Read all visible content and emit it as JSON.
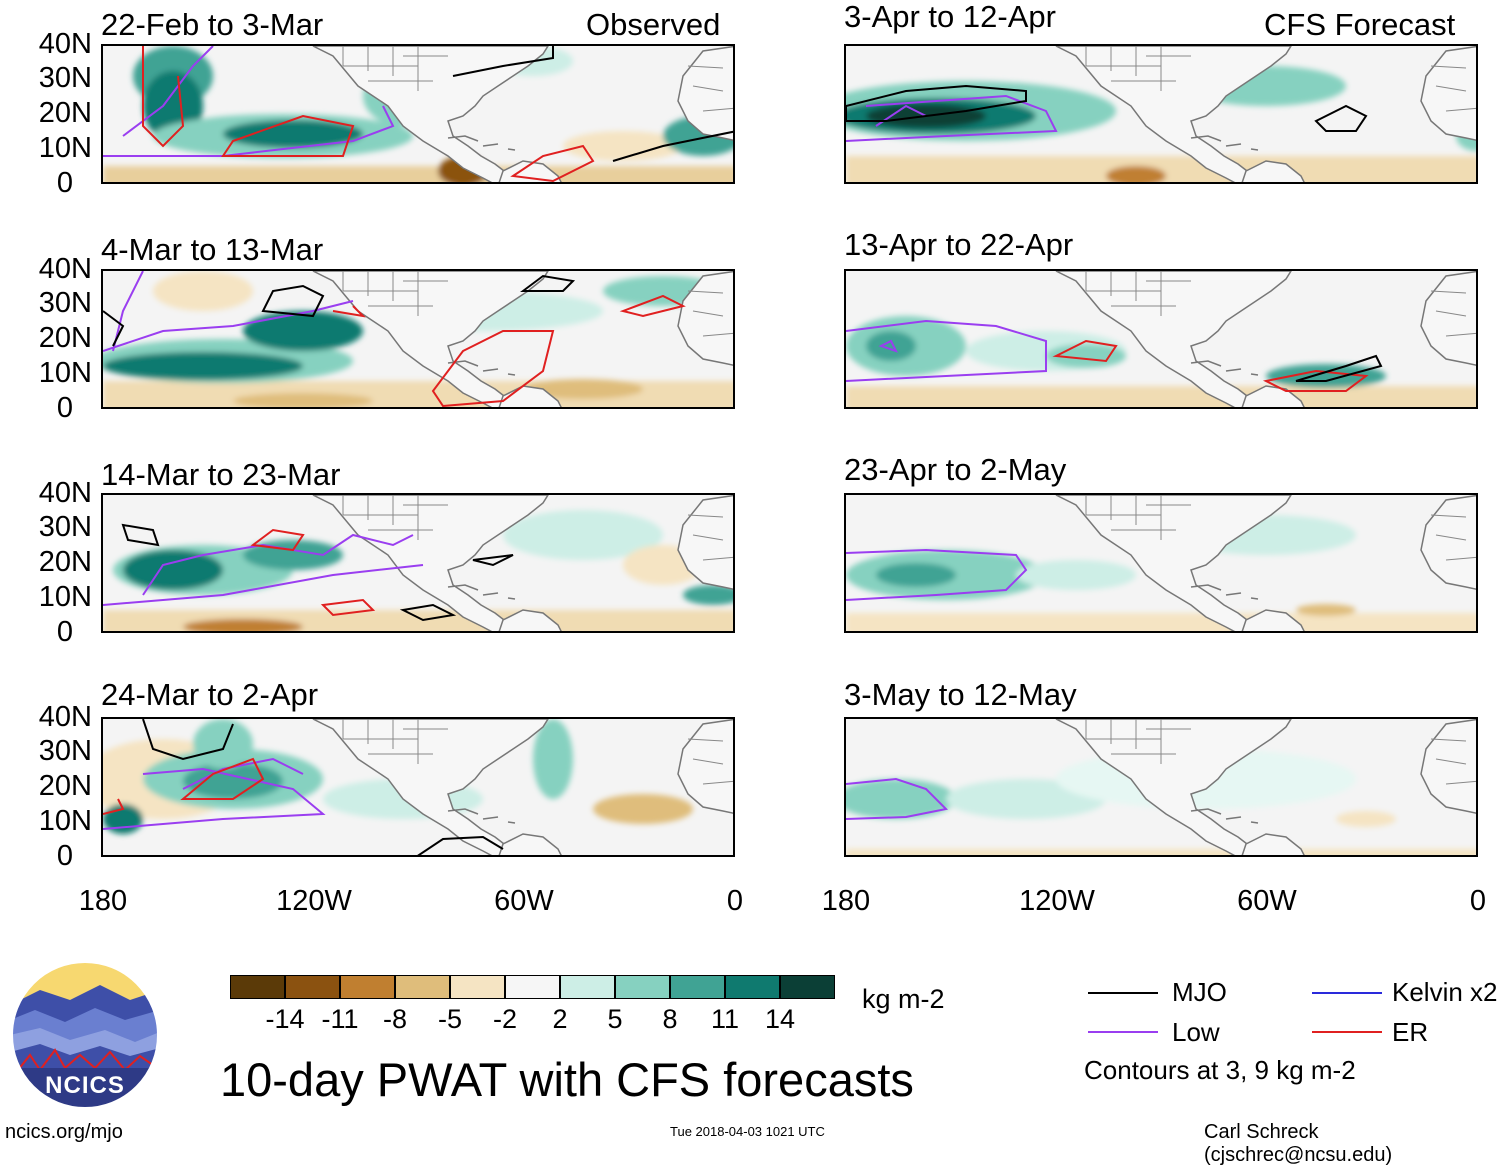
{
  "left_header": "Observed",
  "right_header": "CFS Forecast",
  "panels_left": [
    {
      "title": "22-Feb to 3-Mar"
    },
    {
      "title": "4-Mar to 13-Mar"
    },
    {
      "title": "14-Mar to 23-Mar"
    },
    {
      "title": "24-Mar to 2-Apr"
    }
  ],
  "panels_right": [
    {
      "title": "3-Apr to 12-Apr"
    },
    {
      "title": "13-Apr to 22-Apr"
    },
    {
      "title": "23-Apr to 2-May"
    },
    {
      "title": "3-May to 12-May"
    }
  ],
  "lat_labels": [
    "40N",
    "30N",
    "20N",
    "10N",
    "0"
  ],
  "lon_labels": [
    "180",
    "120W",
    "60W",
    "0"
  ],
  "colorbar": {
    "colors": [
      "#5b3a08",
      "#8b5210",
      "#c07f30",
      "#dfbd7b",
      "#f5e4c3",
      "#f6f6f6",
      "#cdeee6",
      "#86d1c0",
      "#40a394",
      "#0f7a6f",
      "#0b3f36"
    ],
    "labels": [
      "-14",
      "-11",
      "-8",
      "-5",
      "-2",
      "2",
      "5",
      "8",
      "11",
      "14"
    ],
    "units": "kg m-2"
  },
  "legend": {
    "mjo": {
      "label": "MJO",
      "color": "#000000"
    },
    "kelvin": {
      "label": "Kelvin x2",
      "color": "#2a2adb"
    },
    "low": {
      "label": "Low",
      "color": "#9a3ef0"
    },
    "er": {
      "label": "ER",
      "color": "#e02020"
    },
    "note": "Contours at 3, 9 kg m-2"
  },
  "main_title": "10-day PWAT with CFS forecasts",
  "logo_text": "NCICS",
  "footer": {
    "url": "ncics.org/mjo",
    "timestamp": "Tue 2018-04-03 1021 UTC",
    "author": "Carl Schreck (cjschrec@ncsu.edu)"
  }
}
